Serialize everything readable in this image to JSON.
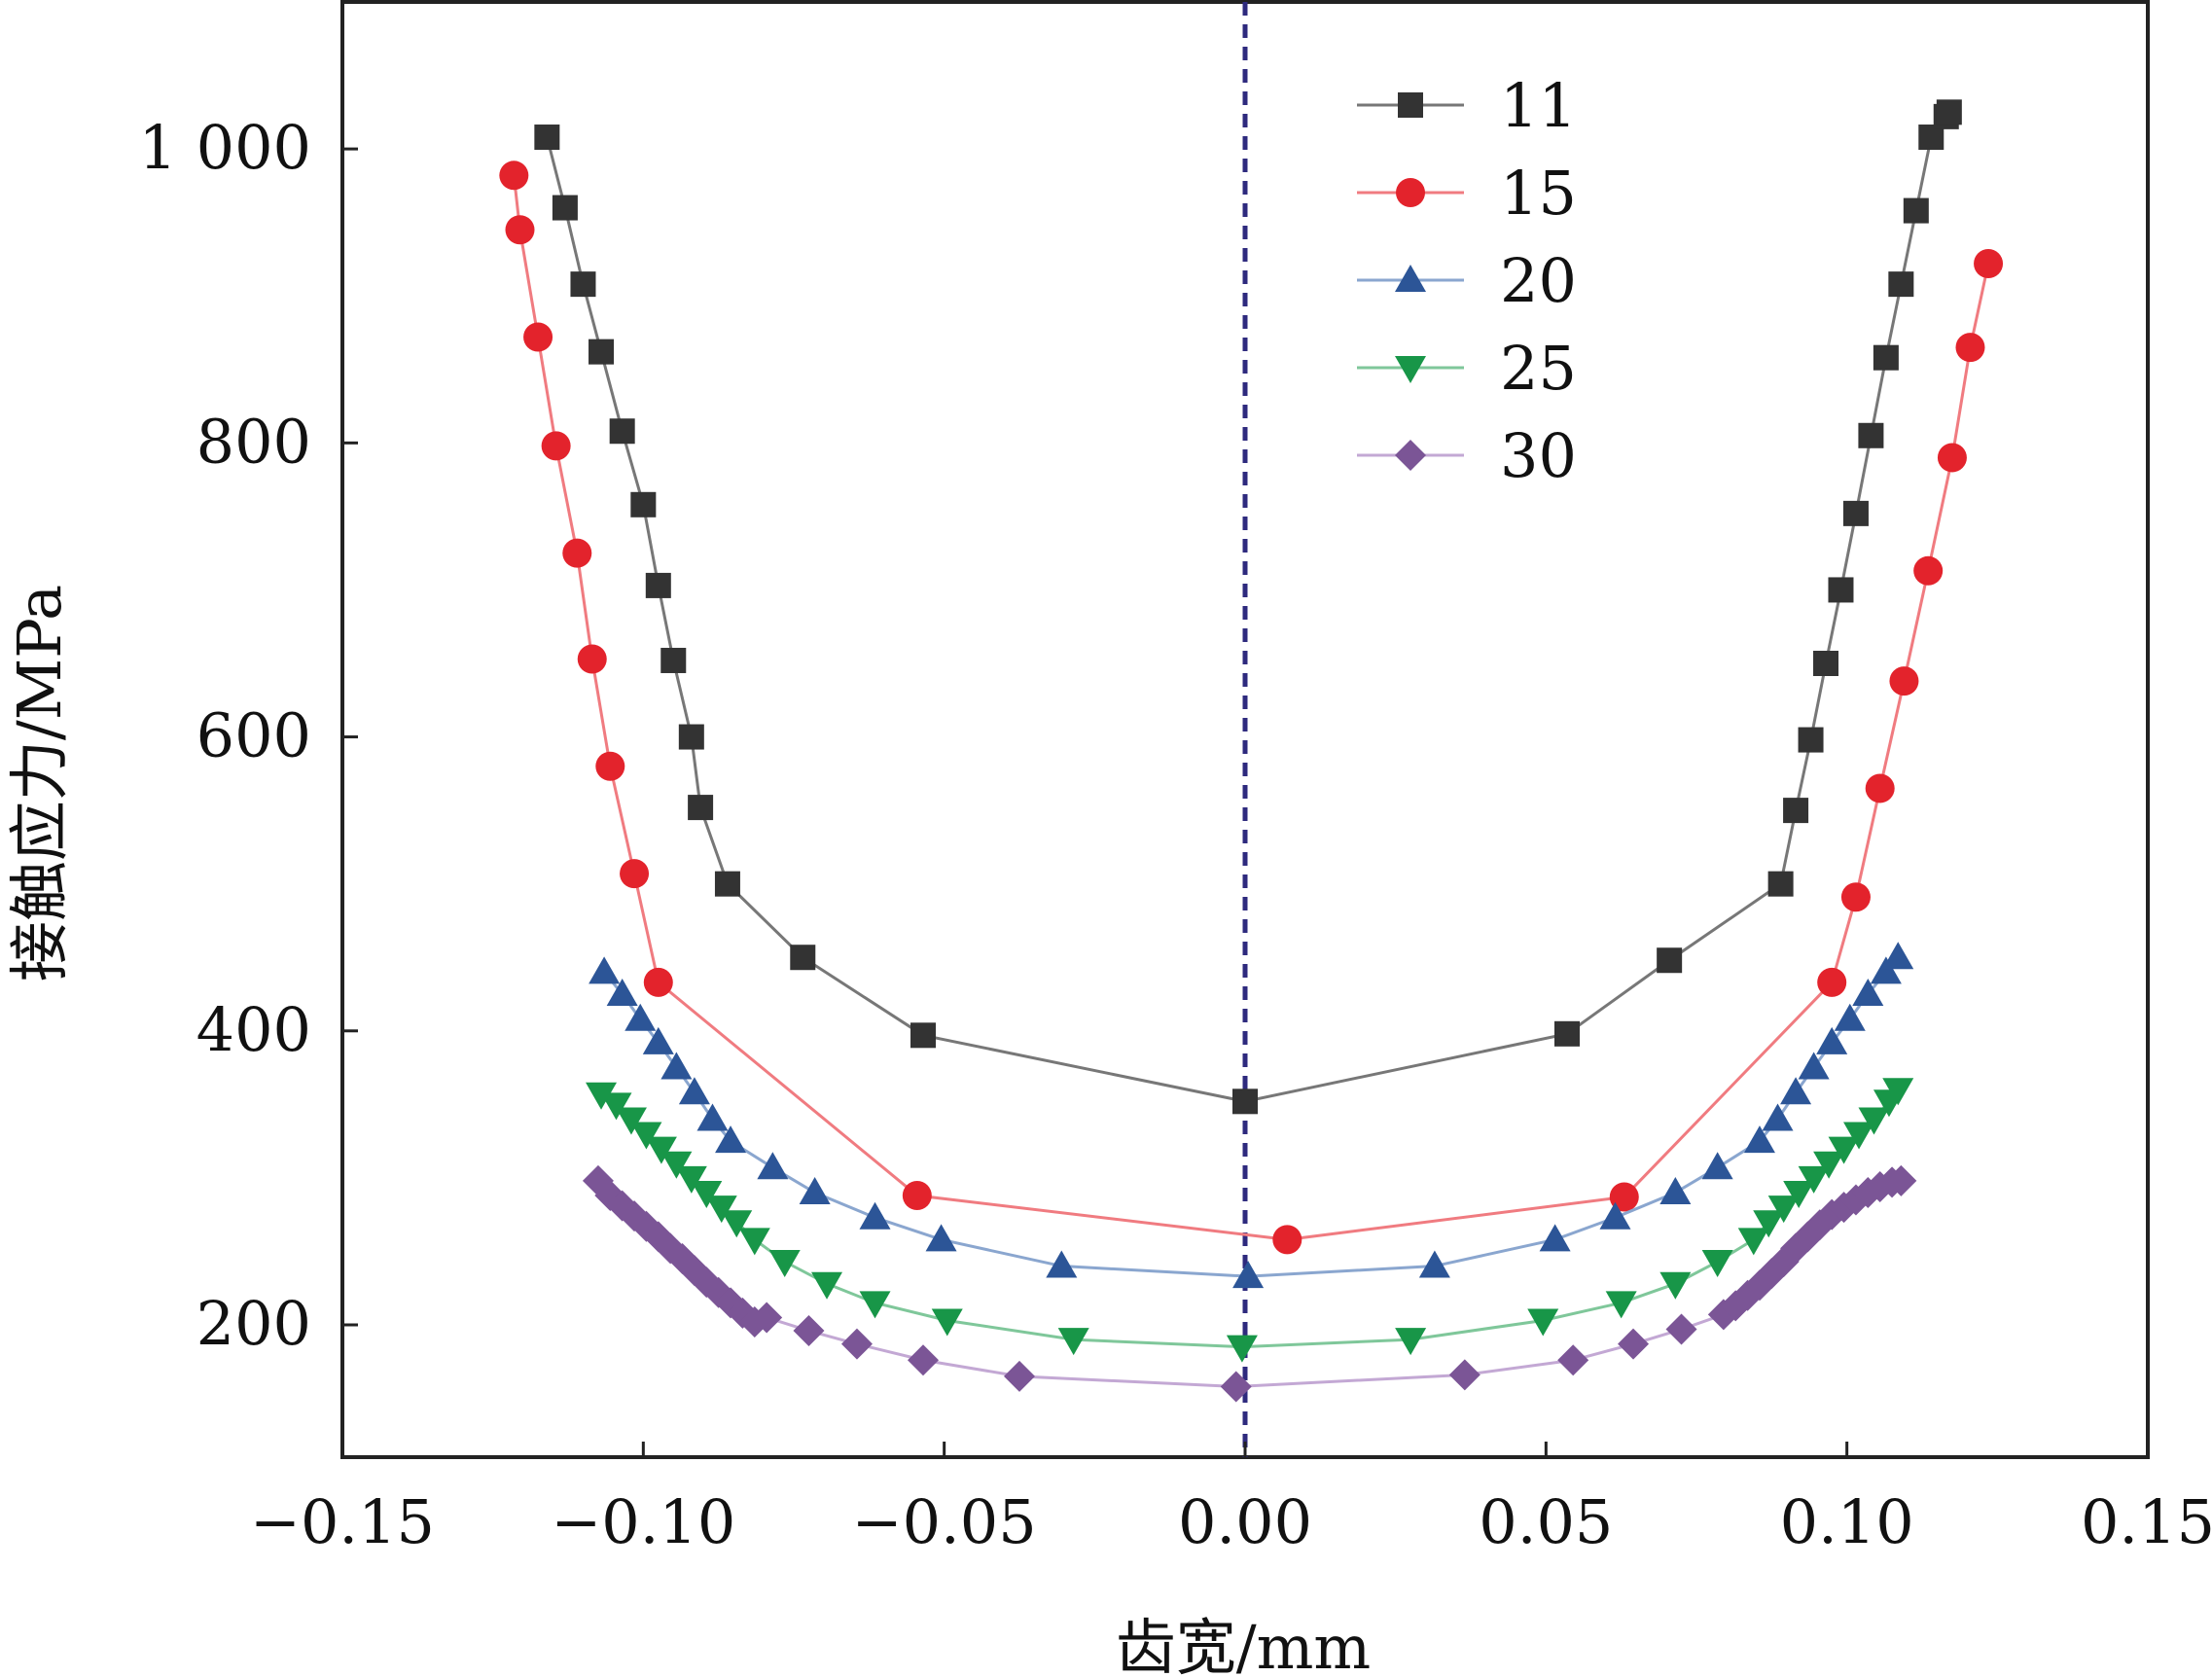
{
  "chart_data": {
    "type": "line",
    "title": "",
    "xlabel": "齿宽/mm",
    "ylabel": "接触应力/MPa",
    "xlim": [
      -0.15,
      0.15
    ],
    "ylim": [
      110,
      1100
    ],
    "xticks": [
      -0.15,
      -0.1,
      -0.05,
      0.0,
      0.05,
      0.1,
      0.15
    ],
    "xtick_labels": [
      "−0.15",
      "−0.10",
      "−0.05",
      "0.00",
      "0.05",
      "0.10",
      "0.15"
    ],
    "yticks": [
      200,
      400,
      600,
      800,
      1000
    ],
    "ytick_labels": [
      "200",
      "400",
      "600",
      "800",
      "1 000"
    ],
    "grid": false,
    "legend_position": "top-right",
    "reference_line": {
      "x": 0.0,
      "style": "dashed",
      "color": "#2e2a7e"
    },
    "series": [
      {
        "name": "11",
        "marker": "square",
        "color": "#333333",
        "line_color": "#777777",
        "x": [
          -0.116,
          -0.113,
          -0.11,
          -0.107,
          -0.1035,
          -0.1,
          -0.0975,
          -0.095,
          -0.092,
          -0.0905,
          -0.086,
          -0.0735,
          -0.0535,
          0.0,
          0.0535,
          0.0705,
          0.089,
          0.0915,
          0.094,
          0.0965,
          0.099,
          0.1015,
          0.104,
          0.1065,
          0.109,
          0.1115,
          0.114,
          0.1165,
          0.117
        ],
        "y": [
          1008,
          960,
          908,
          862,
          808,
          758,
          703,
          652,
          600,
          552,
          500,
          450,
          397,
          352,
          398,
          448,
          500,
          550,
          598,
          650,
          700,
          752,
          805,
          858,
          908,
          958,
          1008,
          1022,
          1025
        ]
      },
      {
        "name": "15",
        "marker": "circle",
        "color": "#e3232c",
        "line_color": "#f07b80",
        "x": [
          -0.1215,
          -0.1205,
          -0.1175,
          -0.1145,
          -0.111,
          -0.1085,
          -0.1055,
          -0.1015,
          -0.0975,
          -0.0545,
          0.007,
          0.063,
          0.0975,
          0.1015,
          0.1055,
          0.1095,
          0.1135,
          0.1175,
          0.1205,
          0.1235
        ],
        "y": [
          982,
          945,
          872,
          798,
          725,
          653,
          580,
          507,
          433,
          288,
          258,
          287,
          433,
          491,
          565,
          638,
          713,
          790,
          865,
          922
        ]
      },
      {
        "name": "20",
        "marker": "triangle-up",
        "color": "#2c5597",
        "line_color": "#8aa6cf",
        "x": [
          -0.1065,
          -0.1035,
          -0.1005,
          -0.0975,
          -0.0945,
          -0.0915,
          -0.0885,
          -0.0855,
          -0.0785,
          -0.0715,
          -0.0615,
          -0.0505,
          -0.0305,
          0.0005,
          0.0315,
          0.0515,
          0.0615,
          0.0715,
          0.0785,
          0.0855,
          0.0885,
          0.0915,
          0.0945,
          0.0975,
          0.1005,
          0.1035,
          0.1065,
          0.1085
        ],
        "y": [
          440,
          425,
          408,
          392,
          375,
          358,
          340,
          325,
          307,
          290,
          273,
          258,
          240,
          233,
          240,
          258,
          273,
          290,
          307,
          325,
          340,
          358,
          375,
          392,
          408,
          425,
          440,
          450
        ]
      },
      {
        "name": "25",
        "marker": "triangle-down",
        "color": "#189648",
        "line_color": "#7fc79a",
        "x": [
          -0.107,
          -0.1045,
          -0.102,
          -0.0995,
          -0.097,
          -0.0945,
          -0.092,
          -0.0895,
          -0.087,
          -0.0845,
          -0.0815,
          -0.0765,
          -0.0695,
          -0.0615,
          -0.0495,
          -0.0285,
          -0.0005,
          0.0275,
          0.0495,
          0.0625,
          0.0715,
          0.0785,
          0.0845,
          0.087,
          0.0895,
          0.092,
          0.0945,
          0.097,
          0.0995,
          0.102,
          0.1045,
          0.107,
          0.1085
        ],
        "y": [
          357,
          350,
          340,
          330,
          320,
          310,
          300,
          290,
          280,
          270,
          258,
          243,
          228,
          215,
          203,
          190,
          185,
          190,
          203,
          215,
          228,
          243,
          258,
          270,
          280,
          290,
          300,
          310,
          320,
          330,
          340,
          352,
          360
        ]
      },
      {
        "name": "30",
        "marker": "diamond",
        "color": "#7b5596",
        "line_color": "#c3a8d4",
        "x": [
          -0.1075,
          -0.1055,
          -0.1035,
          -0.1015,
          -0.0995,
          -0.0975,
          -0.0955,
          -0.0935,
          -0.0915,
          -0.0895,
          -0.0875,
          -0.0855,
          -0.0835,
          -0.0815,
          -0.0795,
          -0.0725,
          -0.0645,
          -0.0535,
          -0.0375,
          -0.0015,
          0.0365,
          0.0545,
          0.0645,
          0.0725,
          0.0795,
          0.0815,
          0.0835,
          0.0855,
          0.0875,
          0.0895,
          0.0915,
          0.0935,
          0.0955,
          0.0975,
          0.0995,
          0.1015,
          0.1035,
          0.1055,
          0.1075,
          0.109
        ],
        "y": [
          298,
          288,
          281,
          274,
          267,
          260,
          252,
          245,
          237,
          229,
          222,
          215,
          208,
          202,
          205,
          196,
          187,
          176,
          165,
          158,
          166,
          176,
          187,
          197,
          207,
          213,
          220,
          227,
          235,
          243,
          252,
          260,
          268,
          275,
          280,
          285,
          290,
          294,
          297,
          298
        ]
      }
    ]
  }
}
